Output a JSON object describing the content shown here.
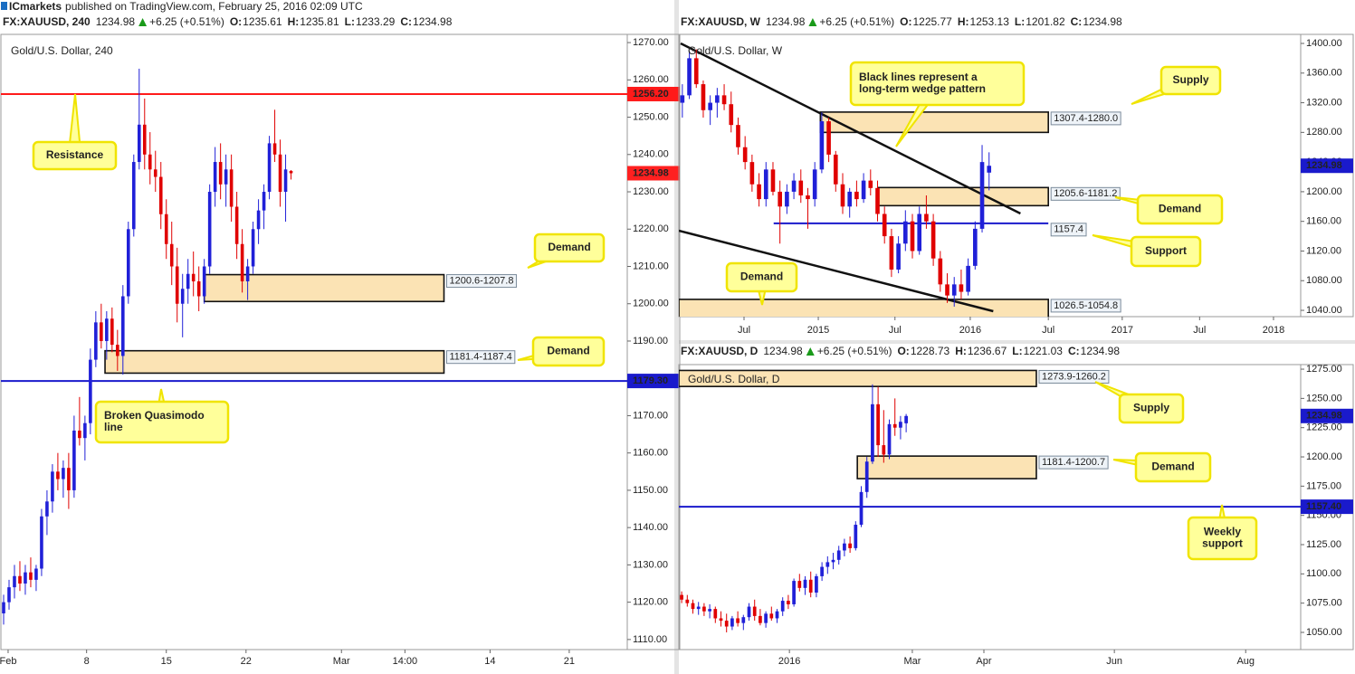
{
  "header": {
    "author": "ICmarkets",
    "text": "published on TradingView.com, February 25, 2016 02:09 UTC"
  },
  "ohlc_labels": [
    "O:",
    "H:",
    "L:",
    "C:"
  ],
  "chart_data": [
    {
      "type": "candlestick",
      "symbol": "FX:XAUUSD, 240",
      "change": "+6.25 (+0.51%)",
      "legend": "Gold/U.S. Dollar, 240",
      "up_color": "#2020d8",
      "down_color": "#e00000",
      "last_color": "#ff2020",
      "grid": false,
      "xlim": [
        -0.5,
        115
      ],
      "ylim": [
        1107.3,
        1272.2
      ],
      "xticks": [
        {
          "value": 0.83,
          "label": "Feb"
        },
        {
          "value": 15.3,
          "label": "8"
        },
        {
          "value": 30,
          "label": "15"
        },
        {
          "value": 44.7,
          "label": "22"
        },
        {
          "value": 62.3,
          "label": "Mar"
        },
        {
          "value": 74,
          "label": "14:00"
        },
        {
          "value": 89.7,
          "label": "14"
        },
        {
          "value": 104.3,
          "label": "21"
        }
      ],
      "yticks": [
        {
          "value": 1110,
          "label": "1110.00"
        },
        {
          "value": 1120,
          "label": "1120.00"
        },
        {
          "value": 1130,
          "label": "1130.00"
        },
        {
          "value": 1140,
          "label": "1140.00"
        },
        {
          "value": 1150,
          "label": "1150.00"
        },
        {
          "value": 1160,
          "label": "1160.00"
        },
        {
          "value": 1170,
          "label": "1170.00"
        },
        {
          "value": 1180,
          "label": "1180.00"
        },
        {
          "value": 1190,
          "label": "1190.00"
        },
        {
          "value": 1200,
          "label": "1200.00"
        },
        {
          "value": 1210,
          "label": "1210.00"
        },
        {
          "value": 1220,
          "label": "1220.00"
        },
        {
          "value": 1230,
          "label": "1230.00"
        },
        {
          "value": 1240,
          "label": "1240.00"
        },
        {
          "value": 1250,
          "label": "1250.00"
        },
        {
          "value": 1260,
          "label": "1260.00"
        },
        {
          "value": 1270,
          "label": "1270.00"
        }
      ],
      "open": [
        1117,
        1120,
        1124,
        1127,
        1125,
        1128,
        1126,
        1129,
        1143,
        1147,
        1155,
        1153,
        1156,
        1150,
        1166,
        1164,
        1168,
        1185,
        1195,
        1190,
        1196,
        1189,
        1186,
        1202,
        1220,
        1238,
        1248,
        1240,
        1236,
        1234,
        1224,
        1216,
        1210,
        1200,
        1204,
        1208,
        1206,
        1202,
        1210,
        1230,
        1238,
        1232,
        1236,
        1226,
        1216,
        1206,
        1210,
        1220,
        1225,
        1230,
        1243,
        1240,
        1230,
        1235.61
      ],
      "high": [
        1122,
        1126,
        1130,
        1131,
        1130,
        1132,
        1130,
        1145,
        1150,
        1157,
        1160,
        1158,
        1160,
        1170,
        1175,
        1170,
        1188,
        1198,
        1200,
        1198,
        1199,
        1193,
        1205,
        1222,
        1240,
        1263,
        1255,
        1246,
        1241,
        1238,
        1228,
        1222,
        1215,
        1208,
        1212,
        1214,
        1210,
        1212,
        1232,
        1242,
        1243,
        1240,
        1240,
        1230,
        1220,
        1212,
        1222,
        1228,
        1232,
        1245,
        1252,
        1244,
        1240,
        1235.81
      ],
      "low": [
        1114,
        1118,
        1121,
        1123,
        1122,
        1124,
        1123,
        1127,
        1138,
        1144,
        1150,
        1148,
        1145,
        1148,
        1162,
        1158,
        1165,
        1183,
        1188,
        1185,
        1187,
        1182,
        1181,
        1200,
        1218,
        1236,
        1236,
        1232,
        1230,
        1220,
        1212,
        1205,
        1195,
        1191,
        1200,
        1202,
        1198,
        1200,
        1208,
        1226,
        1228,
        1226,
        1222,
        1212,
        1203,
        1201,
        1208,
        1216,
        1220,
        1228,
        1238,
        1226,
        1222,
        1233.29
      ],
      "close": [
        1120,
        1124,
        1127,
        1125,
        1128,
        1126,
        1129,
        1143,
        1147,
        1155,
        1153,
        1156,
        1150,
        1166,
        1164,
        1168,
        1185,
        1195,
        1190,
        1196,
        1189,
        1186,
        1202,
        1220,
        1238,
        1248,
        1240,
        1236,
        1234,
        1224,
        1216,
        1210,
        1200,
        1204,
        1208,
        1206,
        1202,
        1210,
        1230,
        1238,
        1232,
        1236,
        1226,
        1216,
        1206,
        1210,
        1220,
        1225,
        1230,
        1243,
        1240,
        1230,
        1236,
        1234.98
      ],
      "zones": [
        {
          "low": 1200.6,
          "high": 1207.8,
          "label": "1200.6-1207.8",
          "start": 37,
          "end": 81.2
        },
        {
          "low": 1181.4,
          "high": 1187.4,
          "label": "1181.4-1187.4",
          "start": 18.7,
          "end": 81.2
        }
      ],
      "levels": [
        {
          "value": 1256.2,
          "label": "1256.20",
          "color": "#ff1a1a",
          "label_at": "axis"
        },
        {
          "value": 1179.3,
          "label": "1179.30",
          "color": "#1a1acc",
          "label_at": "axis"
        }
      ],
      "trendlines": [],
      "callouts": [
        {
          "lines": [
            "Resistance"
          ]
        },
        {
          "lines": [
            "Demand"
          ]
        },
        {
          "lines": [
            "Demand"
          ]
        },
        {
          "lines": [
            "Broken Quasimodo",
            "line"
          ]
        }
      ]
    },
    {
      "type": "candlestick",
      "symbol": "FX:XAUUSD, W",
      "change": "+6.25 (+0.51%)",
      "legend": "Gold/U.S. Dollar, W",
      "up_color": "#2020d8",
      "down_color": "#e00000",
      "last_color": "#1a1acc",
      "grid": false,
      "xlim": [
        -0.5,
        88.7
      ],
      "ylim": [
        1031.5,
        1412.2
      ],
      "xticks": [
        {
          "value": 8.85,
          "label": "Jul"
        },
        19.5,
        {
          "value": 30.5,
          "label": "Jul"
        },
        41.3,
        {
          "value": 52.5,
          "label": "Jul"
        },
        63.1,
        {
          "value": 74.2,
          "label": "Jul"
        },
        84.8
      ],
      "xtick_labels": [
        "Jul",
        "2015",
        "Jul",
        "2016",
        "Jul",
        "2017",
        "Jul",
        "2018"
      ],
      "yticks": [
        {
          "value": 1040,
          "label": "1040.00"
        },
        {
          "value": 1080,
          "label": "1080.00"
        },
        {
          "value": 1120,
          "label": "1120.00"
        },
        {
          "value": 1160,
          "label": "1160.00"
        },
        {
          "value": 1200,
          "label": "1200.00"
        },
        {
          "value": 1240,
          "label": "1240.00"
        },
        {
          "value": 1280,
          "label": "1280.00"
        },
        {
          "value": 1320,
          "label": "1320.00"
        },
        {
          "value": 1360,
          "label": "1360.00"
        },
        {
          "value": 1400,
          "label": "1400.00"
        }
      ],
      "open": [
        1320,
        1330,
        1380,
        1345,
        1310,
        1320,
        1330,
        1318,
        1290,
        1260,
        1240,
        1210,
        1190,
        1230,
        1200,
        1180,
        1200,
        1215,
        1195,
        1190,
        1230,
        1295,
        1250,
        1210,
        1180,
        1200,
        1190,
        1215,
        1205,
        1170,
        1140,
        1095,
        1130,
        1160,
        1120,
        1170,
        1160,
        1110,
        1075,
        1060,
        1075,
        1065,
        1100,
        1150,
        1225.77
      ],
      "high": [
        1345,
        1390,
        1392,
        1350,
        1330,
        1340,
        1345,
        1335,
        1300,
        1275,
        1250,
        1225,
        1240,
        1240,
        1215,
        1210,
        1225,
        1230,
        1205,
        1240,
        1307,
        1300,
        1255,
        1225,
        1205,
        1215,
        1225,
        1230,
        1215,
        1180,
        1150,
        1140,
        1175,
        1170,
        1180,
        1195,
        1170,
        1120,
        1090,
        1085,
        1095,
        1110,
        1160,
        1263,
        1253.13
      ],
      "low": [
        1300,
        1325,
        1340,
        1300,
        1290,
        1300,
        1310,
        1280,
        1250,
        1230,
        1200,
        1180,
        1180,
        1195,
        1130,
        1170,
        1190,
        1185,
        1150,
        1180,
        1225,
        1240,
        1200,
        1170,
        1165,
        1180,
        1185,
        1195,
        1160,
        1130,
        1085,
        1090,
        1120,
        1110,
        1115,
        1150,
        1100,
        1065,
        1050,
        1045,
        1055,
        1060,
        1095,
        1145,
        1201.82
      ],
      "close": [
        1330,
        1380,
        1345,
        1310,
        1320,
        1330,
        1318,
        1290,
        1260,
        1240,
        1210,
        1190,
        1230,
        1200,
        1180,
        1200,
        1215,
        1195,
        1190,
        1230,
        1295,
        1250,
        1210,
        1180,
        1200,
        1190,
        1215,
        1205,
        1170,
        1140,
        1095,
        1130,
        1160,
        1120,
        1170,
        1160,
        1110,
        1075,
        1060,
        1075,
        1065,
        1100,
        1150,
        1240,
        1234.98
      ],
      "zones": [
        {
          "low": 1280.0,
          "high": 1307.4,
          "label": "1307.4-1280.0",
          "start": 19.8,
          "end": 52.5
        },
        {
          "low": 1181.2,
          "high": 1205.6,
          "label": "1205.6-1181.2",
          "start": 28.1,
          "end": 52.5
        },
        {
          "low": 1026.5,
          "high": 1054.8,
          "label": "1026.5-1054.8",
          "start": -0.5,
          "end": 52.5
        }
      ],
      "levels": [
        {
          "value": 1157.4,
          "label": "1157.4",
          "color": "#1a1acc",
          "label_at": "end",
          "start": 13.1,
          "end": 52.5
        }
      ],
      "trendlines": [
        {
          "from": [
            -0.24,
            1400
          ],
          "to": [
            48.5,
            1170.6
          ]
        },
        {
          "from": [
            -0.5,
            1147.4
          ],
          "to": [
            44.6,
            1038.8
          ]
        }
      ],
      "callouts": [
        {
          "lines": [
            "Black lines represent a",
            "long-term wedge pattern"
          ]
        },
        {
          "lines": [
            "Supply"
          ]
        },
        {
          "lines": [
            "Demand"
          ]
        },
        {
          "lines": [
            "Support"
          ]
        },
        {
          "lines": [
            "Demand"
          ]
        }
      ]
    },
    {
      "type": "candlestick",
      "symbol": "FX:XAUUSD, D",
      "change": "+6.25 (+0.51%)",
      "legend": "Gold/U.S. Dollar, D",
      "up_color": "#2020d8",
      "down_color": "#e00000",
      "last_color": "#1a1acc",
      "grid": false,
      "xlim": [
        -0.5,
        110.3
      ],
      "ylim": [
        1035.3,
        1278.9
      ],
      "xticks": [
        19.2,
        {
          "value": 41.1,
          "label": "Mar"
        },
        {
          "value": 53.85,
          "label": "Apr"
        },
        {
          "value": 77.1,
          "label": "Jun"
        },
        {
          "value": 100.5,
          "label": "Aug"
        }
      ],
      "xtick_labels": [
        "2016",
        "Mar",
        "Apr",
        "Jun",
        "Aug"
      ],
      "yticks": [
        {
          "value": 1050,
          "label": "1050.00"
        },
        {
          "value": 1075,
          "label": "1075.00"
        },
        {
          "value": 1100,
          "label": "1100.00"
        },
        {
          "value": 1125,
          "label": "1125.00"
        },
        {
          "value": 1150,
          "label": "1150.00"
        },
        {
          "value": 1175,
          "label": "1175.00"
        },
        {
          "value": 1200,
          "label": "1200.00"
        },
        {
          "value": 1225,
          "label": "1225.00"
        },
        {
          "value": 1250,
          "label": "1250.00"
        },
        {
          "value": 1275,
          "label": "1275.00"
        }
      ],
      "open": [
        1082,
        1078,
        1075,
        1070,
        1072,
        1068,
        1070,
        1062,
        1060,
        1055,
        1062,
        1058,
        1063,
        1072,
        1064,
        1058,
        1066,
        1062,
        1068,
        1077,
        1074,
        1094,
        1088,
        1095,
        1084,
        1098,
        1106,
        1110,
        1112,
        1120,
        1126,
        1122,
        1142,
        1170,
        1196,
        1245,
        1210,
        1202,
        1228,
        1225,
        1228.73
      ],
      "high": [
        1085,
        1082,
        1078,
        1076,
        1075,
        1074,
        1072,
        1068,
        1066,
        1064,
        1068,
        1065,
        1075,
        1078,
        1070,
        1068,
        1072,
        1070,
        1080,
        1082,
        1096,
        1100,
        1098,
        1102,
        1100,
        1110,
        1115,
        1118,
        1124,
        1130,
        1132,
        1145,
        1175,
        1200,
        1262,
        1260,
        1240,
        1232,
        1250,
        1235,
        1236.67
      ],
      "low": [
        1075,
        1072,
        1066,
        1065,
        1064,
        1062,
        1058,
        1055,
        1050,
        1052,
        1055,
        1052,
        1060,
        1060,
        1056,
        1054,
        1060,
        1058,
        1064,
        1070,
        1072,
        1085,
        1082,
        1080,
        1080,
        1094,
        1100,
        1104,
        1108,
        1115,
        1118,
        1120,
        1140,
        1165,
        1194,
        1200,
        1195,
        1198,
        1218,
        1215,
        1221.03
      ],
      "close": [
        1078,
        1075,
        1070,
        1072,
        1068,
        1070,
        1062,
        1060,
        1055,
        1062,
        1058,
        1063,
        1072,
        1064,
        1058,
        1066,
        1062,
        1068,
        1077,
        1074,
        1094,
        1088,
        1095,
        1084,
        1098,
        1106,
        1110,
        1112,
        1120,
        1126,
        1122,
        1142,
        1170,
        1196,
        1245,
        1210,
        1202,
        1228,
        1225,
        1230,
        1234.98
      ],
      "zones": [
        {
          "low": 1260.2,
          "high": 1273.9,
          "label": "1273.9-1260.2",
          "start": -0.5,
          "end": 63.2
        },
        {
          "low": 1181.4,
          "high": 1200.7,
          "label": "1181.4-1200.7",
          "start": 31.3,
          "end": 63.2
        }
      ],
      "levels": [
        {
          "value": 1157.4,
          "label": "1157.40",
          "color": "#1a1acc",
          "label_at": "axis"
        }
      ],
      "trendlines": [],
      "callouts": [
        {
          "lines": [
            "Supply"
          ]
        },
        {
          "lines": [
            "Demand"
          ]
        },
        {
          "lines": [
            "Weekly",
            "support"
          ]
        }
      ]
    }
  ]
}
